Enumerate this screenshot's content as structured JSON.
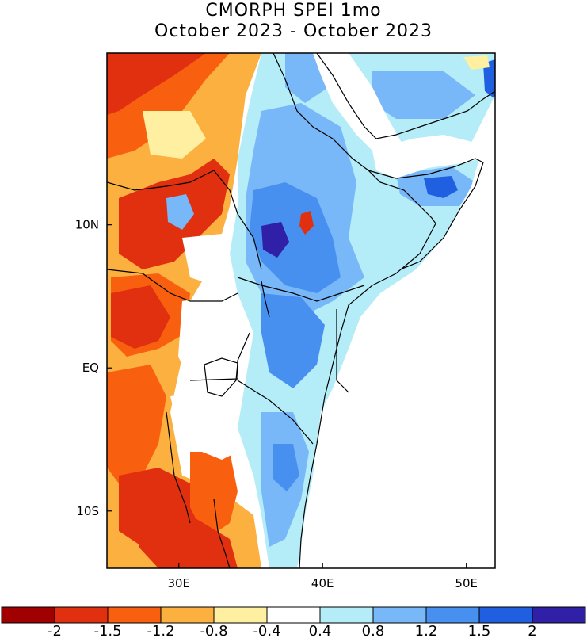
{
  "title": {
    "line1": "CMORPH SPEI 1mo",
    "line2": "October 2023 - October 2023"
  },
  "map": {
    "lon_range": [
      25,
      52
    ],
    "lat_range": [
      -14,
      22
    ],
    "lat_ticks": [
      {
        "label": "10N",
        "value": 10
      },
      {
        "label": "EQ",
        "value": 0
      },
      {
        "label": "10S",
        "value": -10
      }
    ],
    "lon_ticks": [
      {
        "label": "30E",
        "value": 30
      },
      {
        "label": "40E",
        "value": 40
      },
      {
        "label": "50E",
        "value": 50
      }
    ]
  },
  "legend": {
    "colors": [
      "#a00000",
      "#e03010",
      "#f86010",
      "#fcb040",
      "#fef0a0",
      "#ffffff",
      "#b4ecf8",
      "#78b8f8",
      "#4890f0",
      "#2060e0",
      "#3020a8"
    ],
    "labels": [
      "-2",
      "-1.5",
      "-1.2",
      "-0.8",
      "-0.4",
      "0.4",
      "0.8",
      "1.2",
      "1.5",
      "2"
    ]
  },
  "colors": {
    "dry_extreme": "#a00000",
    "dry_severe": "#e03010",
    "dry_moderate": "#f86010",
    "dry_mild": "#fcb040",
    "dry_slight": "#fef0a0",
    "neutral": "#ffffff",
    "wet_slight": "#b4ecf8",
    "wet_mild": "#78b8f8",
    "wet_moderate": "#4890f0",
    "wet_severe": "#2060e0",
    "wet_extreme": "#3020a8"
  }
}
